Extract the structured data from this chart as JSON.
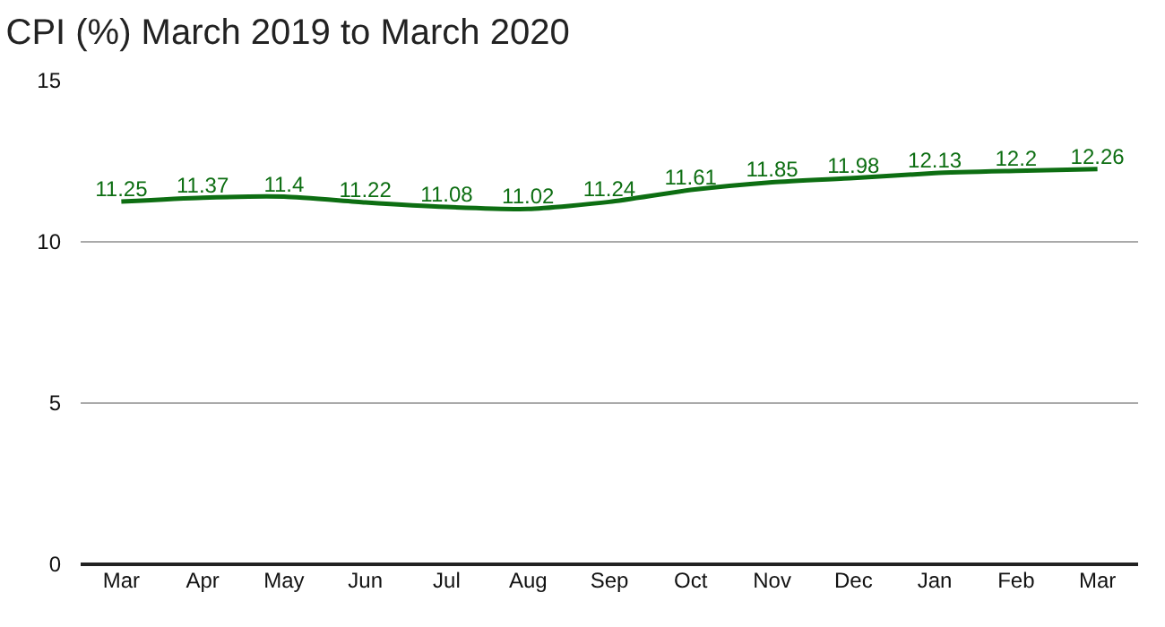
{
  "chart_data": {
    "type": "line",
    "title": "CPI (%) March 2019 to March 2020",
    "categories": [
      "Mar",
      "Apr",
      "May",
      "Jun",
      "Jul",
      "Aug",
      "Sep",
      "Oct",
      "Nov",
      "Dec",
      "Jan",
      "Feb",
      "Mar"
    ],
    "series": [
      {
        "color": "#0d6e12",
        "values": [
          11.25,
          11.37,
          11.4,
          11.22,
          11.08,
          11.02,
          11.24,
          11.61,
          11.85,
          11.98,
          12.13,
          12.2,
          12.26
        ]
      }
    ],
    "ylim": [
      0,
      15
    ],
    "yticks": [
      0,
      5,
      10,
      15
    ],
    "grid": "y",
    "data_labels": true
  }
}
